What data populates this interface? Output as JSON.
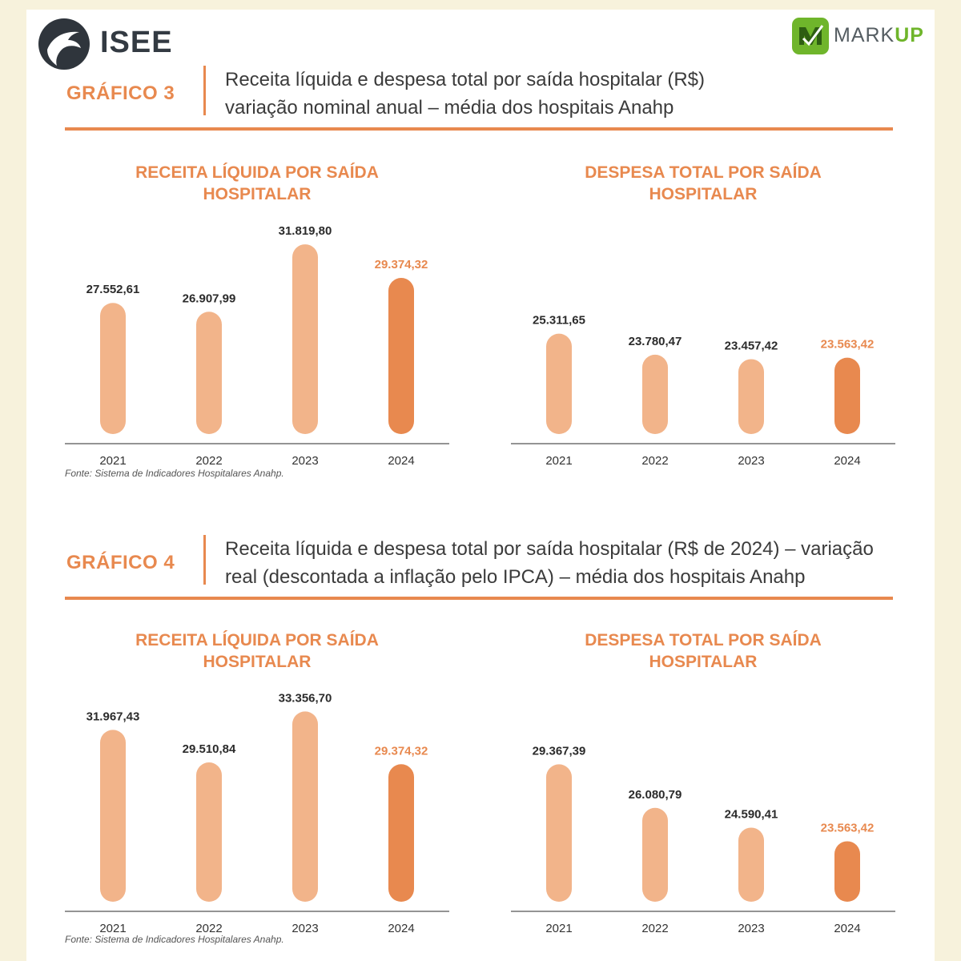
{
  "brands": {
    "left_name": "ISEE",
    "right_name_part1": "MARK",
    "right_name_part2": "UP",
    "right_accent": "#6fb52b"
  },
  "colors": {
    "orange": "#e8894f",
    "light_bar": "#f2b48a",
    "dark_text": "#2b2b2b"
  },
  "sections": [
    {
      "label": "GRÁFICO 3",
      "title_line1": "Receita líquida e despesa total por saída hospitalar (R$)",
      "title_line2": "variação nominal anual – média dos hospitais Anahp",
      "footnote": "Fonte: Sistema de Indicadores Hospitalares Anahp."
    },
    {
      "label": "GRÁFICO 4",
      "title_line1": "Receita líquida e despesa total por saída hospitalar (R$ de 2024) – variação",
      "title_line2": "real (descontada a inflação pelo IPCA) – média dos hospitais Anahp",
      "footnote": "Fonte: Sistema de Indicadores Hospitalares Anahp."
    }
  ],
  "chart_data": [
    {
      "type": "bar",
      "title": "RECEITA LÍQUIDA POR SAÍDA HOSPITALAR",
      "title_lines": [
        "RECEITA LÍQUIDA POR SAÍDA",
        "HOSPITALAR"
      ],
      "categories": [
        "2021",
        "2022",
        "2023",
        "2024"
      ],
      "values": [
        27552.61,
        26907.99,
        31819.8,
        29374.32
      ],
      "labels": [
        "27.552,61",
        "26.907,99",
        "31.819,80",
        "29.374,32"
      ],
      "highlight_index": 3,
      "ylim": [
        18000,
        32000
      ]
    },
    {
      "type": "bar",
      "title": "DESPESA TOTAL POR SAÍDA HOSPITALAR",
      "title_lines": [
        "DESPESA TOTAL POR SAÍDA",
        "HOSPITALAR"
      ],
      "categories": [
        "2021",
        "2022",
        "2023",
        "2024"
      ],
      "values": [
        25311.65,
        23780.47,
        23457.42,
        23563.42
      ],
      "labels": [
        "25.311,65",
        "23.780,47",
        "23.457,42",
        "23.563,42"
      ],
      "highlight_index": 3,
      "ylim": [
        18000,
        32000
      ]
    },
    {
      "type": "bar",
      "title": "RECEITA LÍQUIDA POR SAÍDA HOSPITALAR",
      "title_lines": [
        "RECEITA LÍQUIDA POR SAÍDA",
        "HOSPITALAR"
      ],
      "categories": [
        "2021",
        "2022",
        "2023",
        "2024"
      ],
      "values": [
        31967.43,
        29510.84,
        33356.7,
        29374.32
      ],
      "labels": [
        "31.967,43",
        "29.510,84",
        "33.356,70",
        "29.374,32"
      ],
      "highlight_index": 3,
      "ylim": [
        19000,
        33500
      ]
    },
    {
      "type": "bar",
      "title": "DESPESA TOTAL POR SAÍDA HOSPITALAR",
      "title_lines": [
        "DESPESA TOTAL POR SAÍDA",
        "HOSPITALAR"
      ],
      "categories": [
        "2021",
        "2022",
        "2023",
        "2024"
      ],
      "values": [
        29367.39,
        26080.79,
        24590.41,
        23563.42
      ],
      "labels": [
        "29.367,39",
        "26.080,79",
        "24.590,41",
        "23.563,42"
      ],
      "highlight_index": 3,
      "ylim": [
        19000,
        33500
      ]
    }
  ]
}
